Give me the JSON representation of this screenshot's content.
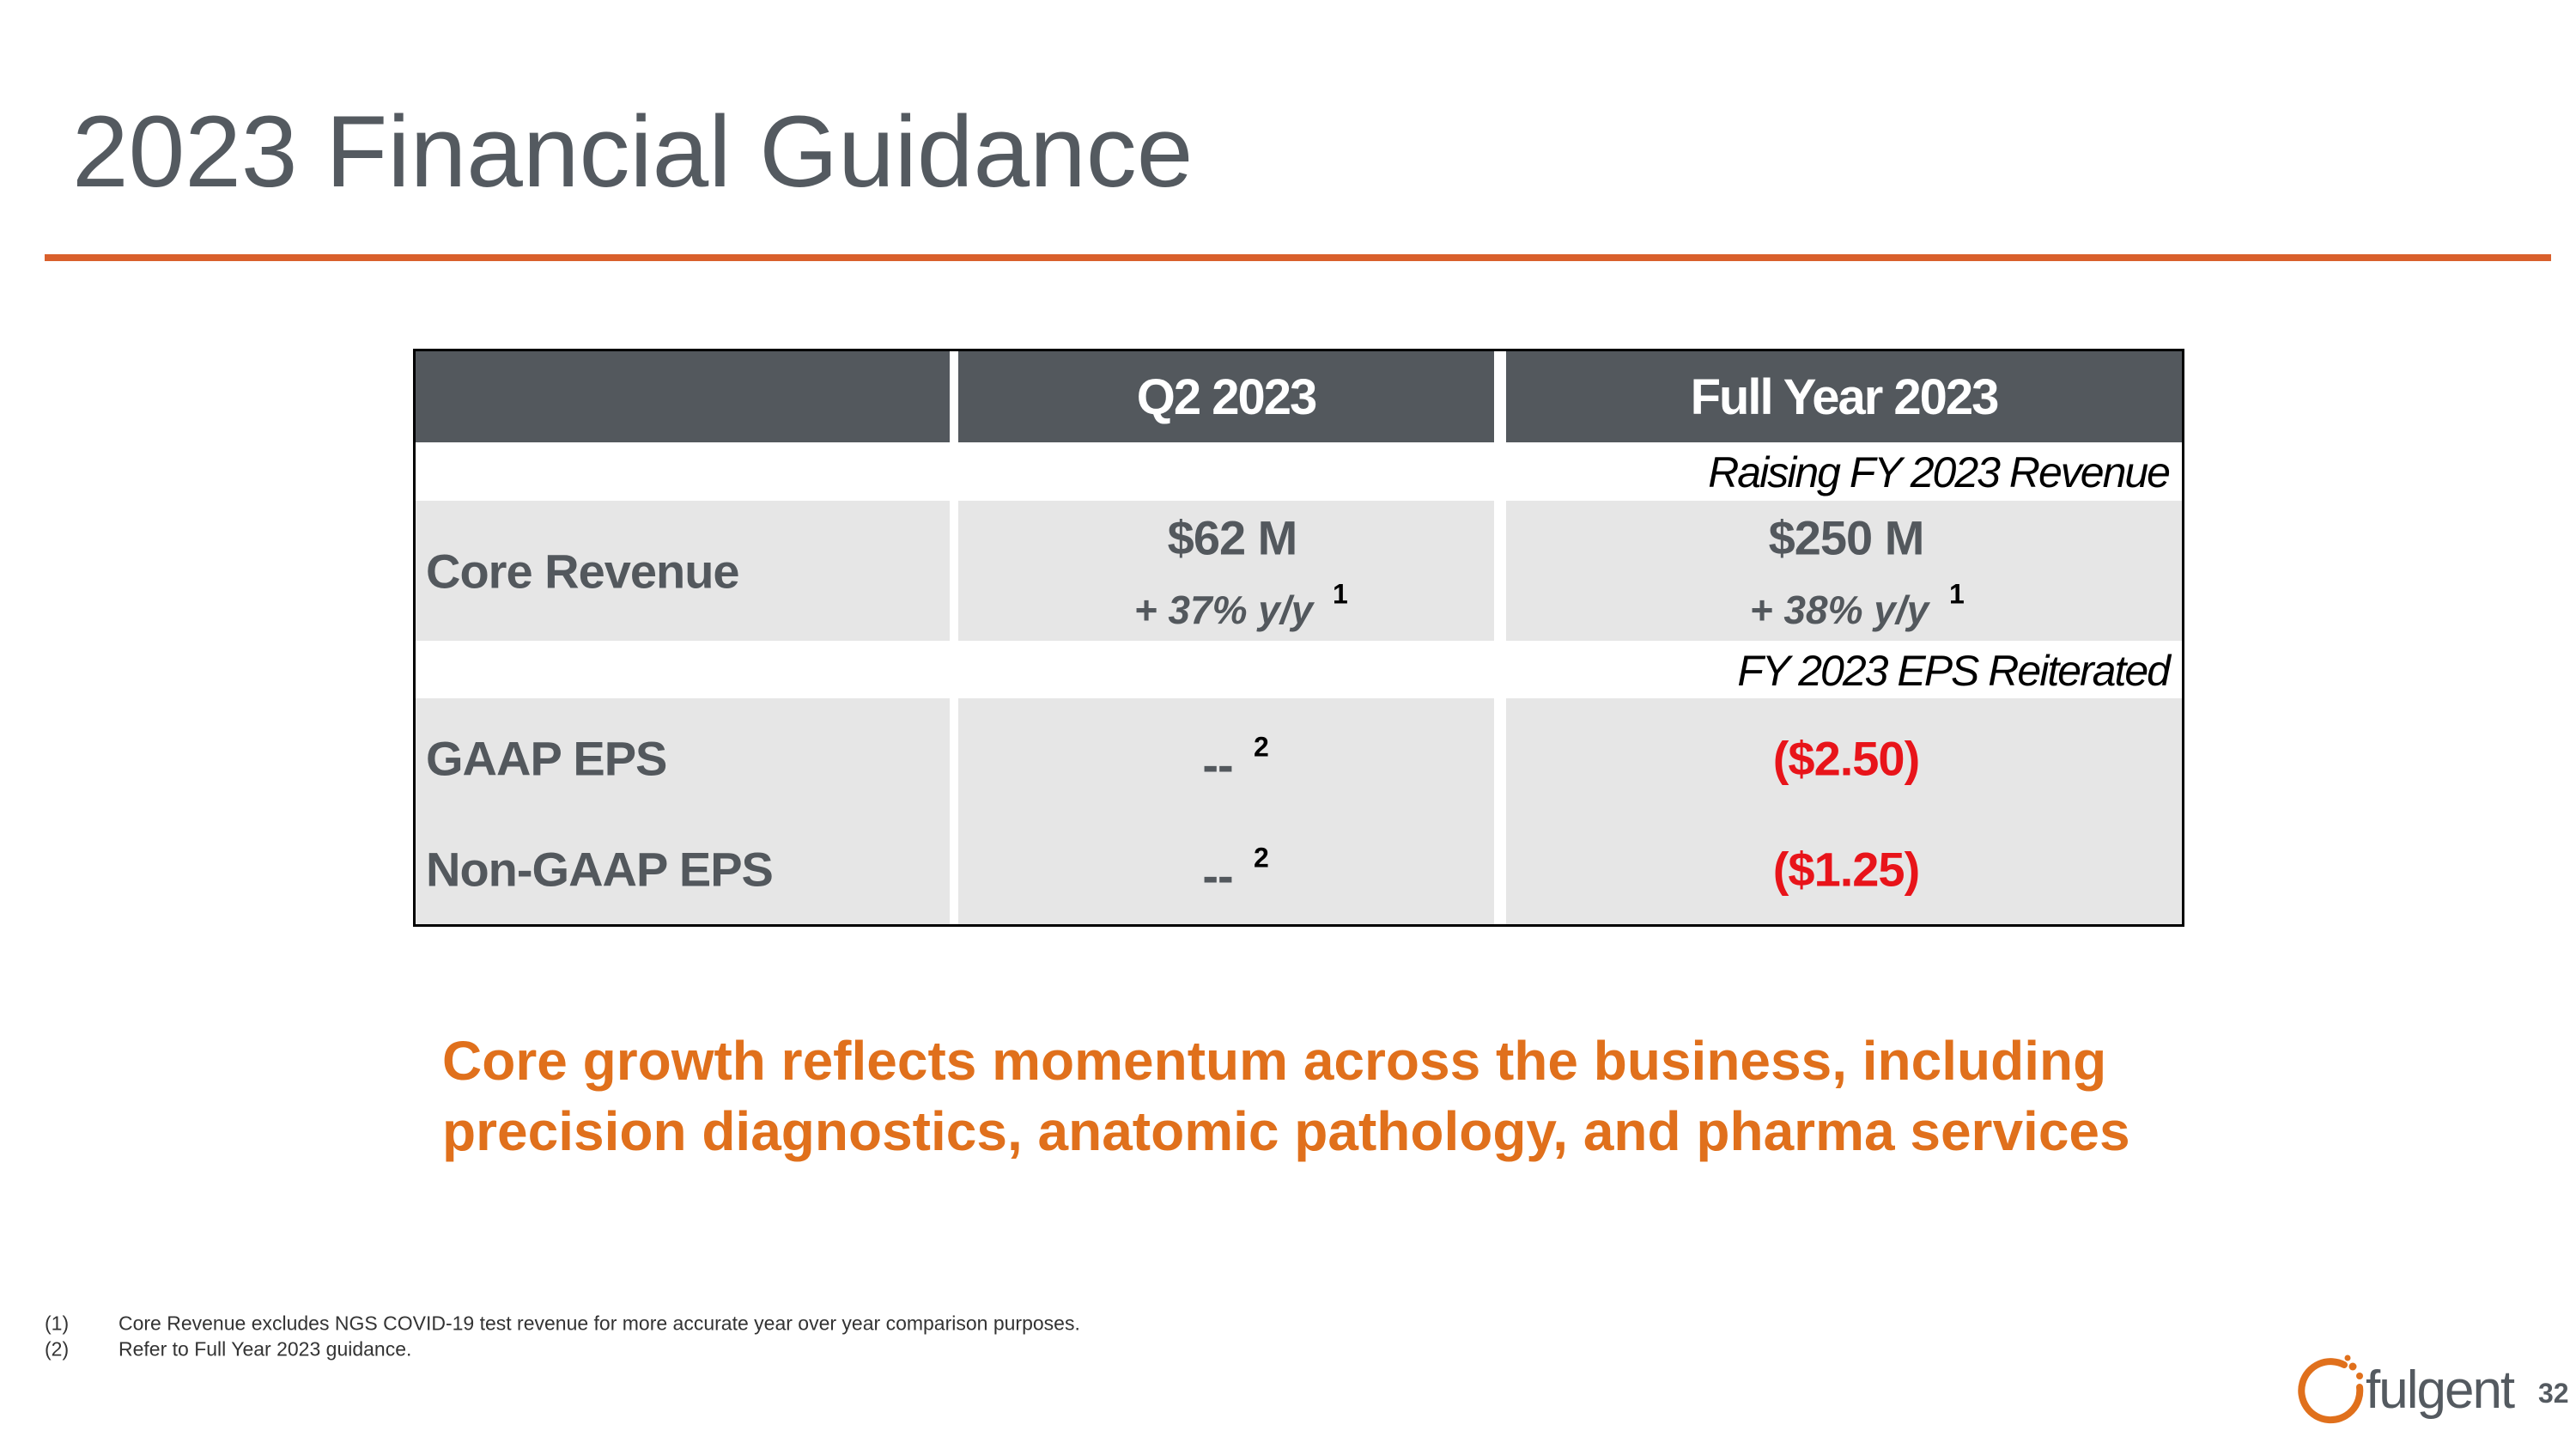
{
  "header": {
    "title": "2023 Financial Guidance"
  },
  "table": {
    "headers": [
      "Q2 2023",
      "Full Year 2023"
    ],
    "revenue_note": "Raising FY 2023 Revenue",
    "core_revenue": {
      "label": "Core Revenue",
      "q2": "$62 M",
      "q2_growth": "+ 37% y/y",
      "q2_footnote": "1",
      "fy": "$250 M",
      "fy_growth": "+ 38% y/y",
      "fy_footnote": "1"
    },
    "eps_note": "FY 2023 EPS Reiterated",
    "eps_rows": [
      {
        "label": "GAAP EPS",
        "q2": "--",
        "q2_footnote": "2",
        "fy": "($2.50)"
      },
      {
        "label": "Non-GAAP EPS",
        "q2": "--",
        "q2_footnote": "2",
        "fy": "($1.25)"
      }
    ]
  },
  "message": [
    "Core growth reflects momentum across the business, including",
    "precision diagnostics, anatomic pathology, and pharma services"
  ],
  "footnotes": [
    {
      "marker": "(1)",
      "text": "Core Revenue excludes NGS COVID-19 test revenue for more accurate year over year comparison purposes."
    },
    {
      "marker": "(2)",
      "text": "Refer to Full Year 2023 guidance."
    }
  ],
  "logo": {
    "text": "fulgent"
  },
  "page_number": "32"
}
